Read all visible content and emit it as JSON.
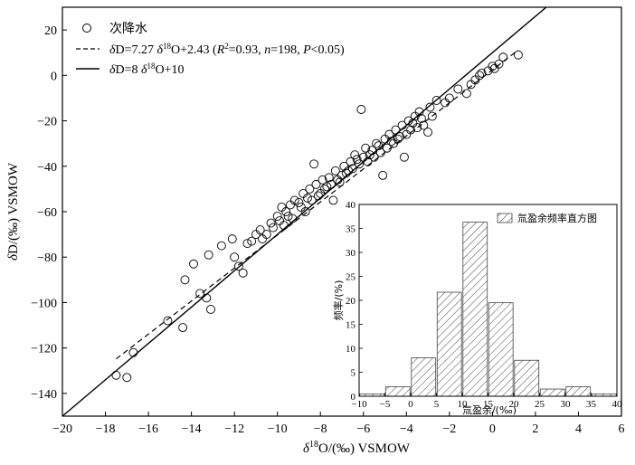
{
  "chart_data": [
    {
      "type": "scatter",
      "xlabel": "δ18O/(‰) VSMOW",
      "ylabel": "δD/(‰) VSMOW",
      "xlim": [
        -20,
        6
      ],
      "ylim": [
        -150,
        30
      ],
      "xticks": [
        -20,
        -18,
        -16,
        -14,
        -12,
        -10,
        -8,
        -6,
        -4,
        -2,
        0,
        2,
        4,
        6
      ],
      "yticks": [
        -140,
        -120,
        -100,
        -80,
        -60,
        -40,
        -20,
        0,
        20
      ],
      "xtick_labels": [
        "−20",
        "−18",
        "−16",
        "−14",
        "−12",
        "−10",
        "−8",
        "−6",
        "−4",
        "−2",
        "0",
        "2",
        "4",
        "6"
      ],
      "ytick_labels": [
        "−140",
        "−120",
        "−100",
        "−80",
        "−60",
        "−40",
        "−20",
        "0",
        "20"
      ],
      "legend": [
        {
          "label": "次降水",
          "marker": "open-circle"
        },
        {
          "label": "δD=7.27 δ18O+2.43 (R2=0.93, n=198, P<0.05)",
          "style": "dashed"
        },
        {
          "label": "δD=8 δ18O+10",
          "style": "solid"
        }
      ],
      "legend_position": "top-left",
      "series": [
        {
          "name": "次降水",
          "x": [
            -17.5,
            -17.0,
            -16.7,
            -15.1,
            -14.4,
            -14.3,
            -13.9,
            -13.6,
            -13.3,
            -13.1,
            -13.2,
            -12.6,
            -12.1,
            -12.0,
            -11.8,
            -11.6,
            -11.4,
            -11.2,
            -11.0,
            -10.8,
            -10.7,
            -10.5,
            -10.3,
            -10.2,
            -10.0,
            -9.9,
            -9.8,
            -9.6,
            -9.5,
            -9.4,
            -9.2,
            -9.0,
            -8.9,
            -8.8,
            -8.6,
            -8.5,
            -8.4,
            -8.2,
            -8.0,
            -7.9,
            -7.8,
            -7.6,
            -7.5,
            -7.3,
            -7.2,
            -7.0,
            -6.9,
            -6.8,
            -6.6,
            -6.5,
            -6.4,
            -6.2,
            -6.0,
            -5.9,
            -5.8,
            -5.6,
            -5.5,
            -5.4,
            -5.2,
            -5.0,
            -4.9,
            -4.8,
            -4.6,
            -4.5,
            -4.4,
            -4.2,
            -4.0,
            -3.9,
            -3.8,
            -3.6,
            -3.5,
            -3.4,
            -3.2,
            -3.0,
            -2.9,
            -2.8,
            -2.6,
            -2.2,
            -2.0,
            -1.6,
            -1.2,
            -1.0,
            -0.8,
            -0.6,
            -0.5,
            -0.2,
            0.0,
            0.1,
            0.3,
            0.5,
            1.2,
            -9.7,
            -9.3,
            -8.7,
            -8.1,
            -7.7,
            -7.1,
            -6.7,
            -6.3,
            -5.7,
            -5.3,
            -4.7,
            -4.3,
            -3.7,
            -3.3,
            -8.3,
            -7.4,
            -6.1,
            -5.1,
            -4.1
          ],
          "y": [
            -132,
            -133,
            -122,
            -108,
            -111,
            -90,
            -83,
            -96,
            -98,
            -103,
            -79,
            -75,
            -72,
            -80,
            -84,
            -87,
            -74,
            -73,
            -70,
            -68,
            -72,
            -70,
            -65,
            -67,
            -62,
            -64,
            -58,
            -60,
            -62,
            -57,
            -55,
            -56,
            -58,
            -52,
            -54,
            -50,
            -55,
            -48,
            -52,
            -46,
            -50,
            -45,
            -48,
            -42,
            -46,
            -44,
            -40,
            -43,
            -38,
            -41,
            -35,
            -39,
            -36,
            -32,
            -38,
            -33,
            -36,
            -30,
            -34,
            -28,
            -32,
            -26,
            -30,
            -24,
            -28,
            -22,
            -26,
            -20,
            -24,
            -18,
            -23,
            -16,
            -22,
            -25,
            -14,
            -18,
            -11,
            -12,
            -10,
            -6,
            -8,
            -4,
            -2,
            0,
            1,
            2,
            4,
            3,
            5,
            8,
            9,
            -66,
            -63,
            -60,
            -53,
            -49,
            -47,
            -42,
            -37,
            -35,
            -31,
            -29,
            -27,
            -21,
            -19,
            -39,
            -55,
            -15,
            -44,
            -36
          ]
        },
        {
          "name": "δD=7.27 δ18O+2.43",
          "slope": 7.27,
          "intercept": 2.43,
          "x_range": [
            -17.5,
            1.2
          ]
        },
        {
          "name": "δD=8 δ18O+10",
          "slope": 8,
          "intercept": 10,
          "x_range": [
            -20,
            6
          ]
        }
      ]
    },
    {
      "type": "bar",
      "title": "氚盈余频率直方图",
      "xlabel": "氚盈余/(‰)",
      "ylabel": "频率/(%)",
      "bin_edges": [
        -10,
        -5,
        0,
        5,
        10,
        15,
        20,
        25,
        30,
        35
      ],
      "bin_width": 5,
      "values": [
        0.5,
        2.0,
        8.0,
        21.7,
        36.3,
        19.5,
        7.5,
        1.5,
        2.0,
        0.5
      ],
      "xlim": [
        -10,
        40
      ],
      "ylim": [
        0,
        40
      ],
      "xticks": [
        -10,
        -5,
        0,
        5,
        10,
        15,
        20,
        25,
        30,
        35,
        40
      ],
      "yticks": [
        0,
        5,
        10,
        15,
        20,
        25,
        30,
        35,
        40
      ],
      "xtick_labels": [
        "−10",
        "−5",
        "0",
        "5",
        "10",
        "15",
        "20",
        "25",
        "30",
        "35",
        "40"
      ],
      "ytick_labels": [
        "0",
        "5",
        "10",
        "15",
        "20",
        "25",
        "30",
        "35",
        "40"
      ],
      "legend": [
        {
          "label": "氚盈余频率直方图"
        }
      ],
      "legend_position": "top-right"
    }
  ]
}
